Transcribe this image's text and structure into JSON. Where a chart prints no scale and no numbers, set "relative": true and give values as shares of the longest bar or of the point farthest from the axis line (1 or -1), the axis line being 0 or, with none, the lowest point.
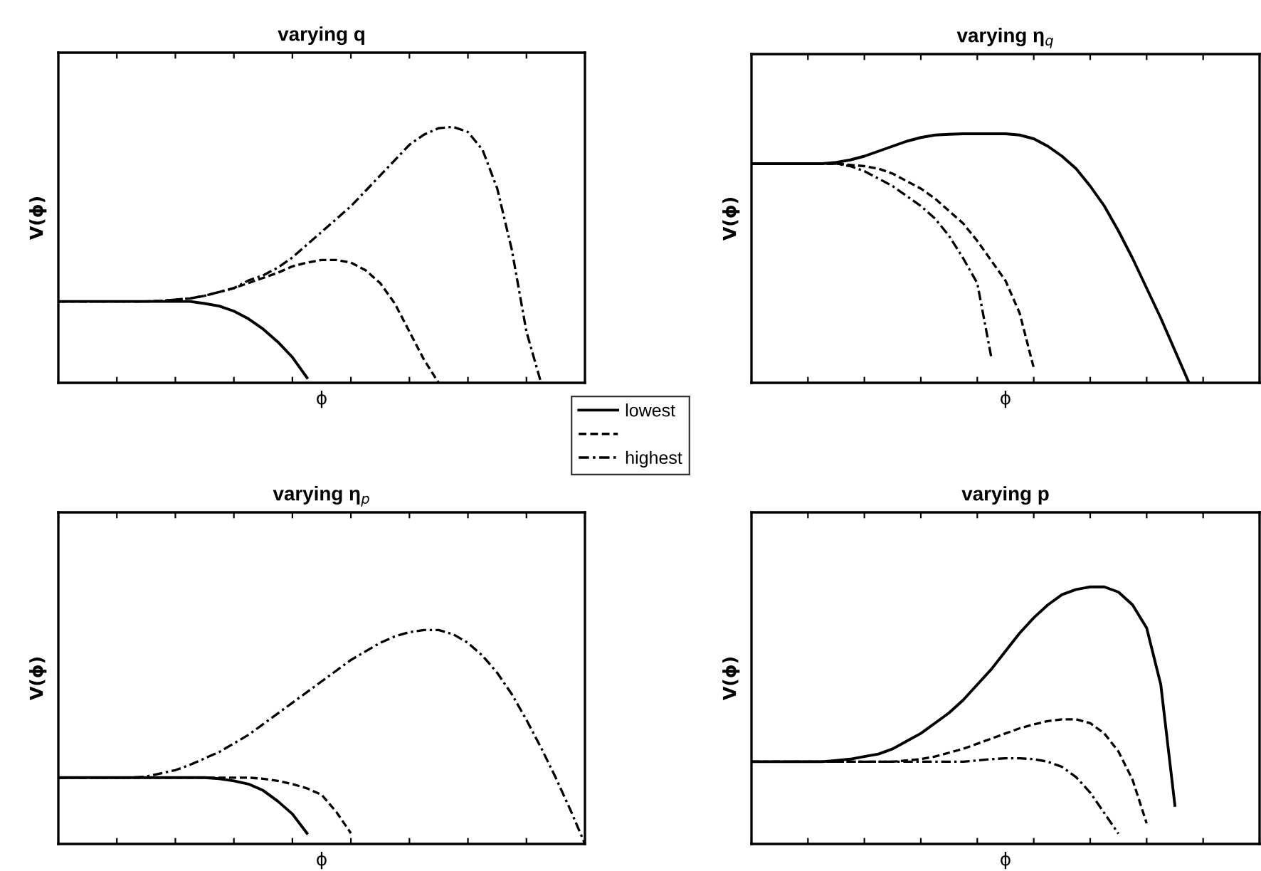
{
  "chart_data": [
    {
      "type": "line",
      "title": "varying q",
      "xlabel": "ϕ",
      "ylabel": "V(ϕ)",
      "relative": true,
      "tick_labels": false,
      "legend": "bottom right",
      "categories": [
        null,
        null,
        null,
        null,
        null,
        null,
        null,
        null,
        null,
        null,
        null,
        null,
        null,
        null,
        null,
        null,
        null,
        null,
        null,
        null,
        null,
        null,
        null,
        null,
        null,
        null,
        null,
        null,
        null,
        null,
        null,
        null,
        null,
        null,
        null,
        null,
        null
      ],
      "series": [
        {
          "name": "lowest",
          "color": "#000000",
          "line_style": "solid",
          "values": [
            0.318,
            0.318,
            0.318,
            0.318,
            0.318,
            0.318,
            0.318,
            0.318,
            0.318,
            0.318,
            0.31,
            0.3,
            0.28,
            0.25,
            0.21,
            0.16,
            0.1,
            0.02,
            null,
            null,
            null,
            null,
            null,
            null,
            null,
            null,
            null,
            null,
            null,
            null,
            null,
            null,
            null,
            null,
            null,
            null,
            null
          ]
        },
        {
          "color": "#000000",
          "line_style": "dashed",
          "values": [
            0.318,
            0.318,
            0.318,
            0.318,
            0.318,
            0.318,
            0.318,
            0.32,
            0.325,
            0.33,
            0.34,
            0.355,
            0.37,
            0.39,
            0.41,
            0.43,
            0.455,
            0.47,
            0.48,
            0.48,
            0.47,
            0.44,
            0.39,
            0.31,
            0.2,
            0.09,
            0.0,
            null,
            null,
            null,
            null,
            null,
            null,
            null,
            null,
            null,
            null
          ]
        },
        {
          "name": "highest",
          "color": "#000000",
          "line_style": "dashdot",
          "values": [
            0.318,
            0.318,
            0.318,
            0.318,
            0.318,
            0.318,
            0.318,
            0.32,
            0.325,
            0.33,
            0.34,
            0.355,
            0.37,
            0.4,
            0.42,
            0.45,
            0.49,
            0.54,
            0.59,
            0.64,
            0.69,
            0.75,
            0.81,
            0.87,
            0.93,
            0.97,
            0.995,
            1.0,
            0.98,
            0.91,
            0.76,
            0.52,
            0.2,
            0.0,
            null,
            null,
            null
          ]
        }
      ]
    },
    {
      "type": "line",
      "title": "varying η$_{q}$",
      "xlabel": "ϕ",
      "ylabel": "V(ϕ)",
      "relative": true,
      "tick_labels": false,
      "categories": [
        null,
        null,
        null,
        null,
        null,
        null,
        null,
        null,
        null,
        null,
        null,
        null,
        null,
        null,
        null,
        null,
        null,
        null,
        null,
        null,
        null,
        null,
        null,
        null,
        null,
        null,
        null,
        null,
        null,
        null,
        null,
        null,
        null,
        null,
        null,
        null,
        null
      ],
      "series": [
        {
          "color": "#000000",
          "line_style": "solid",
          "values": [
            0.88,
            0.88,
            0.88,
            0.88,
            0.88,
            0.88,
            0.885,
            0.895,
            0.91,
            0.93,
            0.95,
            0.97,
            0.985,
            0.995,
            0.998,
            1.0,
            1.0,
            1.0,
            1.0,
            0.995,
            0.98,
            0.95,
            0.91,
            0.86,
            0.79,
            0.71,
            0.61,
            0.5,
            0.38,
            0.26,
            0.13,
            0.0,
            null,
            null,
            null,
            null,
            null
          ]
        },
        {
          "color": "#000000",
          "line_style": "dashed",
          "values": [
            0.88,
            0.88,
            0.88,
            0.88,
            0.88,
            0.88,
            0.88,
            0.875,
            0.87,
            0.86,
            0.84,
            0.81,
            0.78,
            0.74,
            0.69,
            0.64,
            0.57,
            0.49,
            0.41,
            0.28,
            0.06,
            null,
            null,
            null,
            null,
            null,
            null,
            null,
            null,
            null,
            null,
            null,
            null,
            null,
            null,
            null,
            null
          ]
        },
        {
          "color": "#000000",
          "line_style": "dashdot",
          "values": [
            0.88,
            0.88,
            0.88,
            0.88,
            0.88,
            0.88,
            0.88,
            0.87,
            0.85,
            0.82,
            0.79,
            0.75,
            0.71,
            0.66,
            0.59,
            0.5,
            0.4,
            0.1,
            null,
            null,
            null,
            null,
            null,
            null,
            null,
            null,
            null,
            null,
            null,
            null,
            null,
            null,
            null,
            null,
            null,
            null,
            null
          ]
        }
      ]
    },
    {
      "type": "line",
      "title": "varying η$_{p}$",
      "xlabel": "ϕ",
      "ylabel": "V(ϕ)",
      "relative": true,
      "tick_labels": false,
      "categories": [
        null,
        null,
        null,
        null,
        null,
        null,
        null,
        null,
        null,
        null,
        null,
        null,
        null,
        null,
        null,
        null,
        null,
        null,
        null,
        null,
        null,
        null,
        null,
        null,
        null,
        null,
        null,
        null,
        null,
        null,
        null,
        null,
        null,
        null,
        null,
        null,
        null
      ],
      "series": [
        {
          "color": "#000000",
          "line_style": "solid",
          "values": [
            0.31,
            0.31,
            0.31,
            0.31,
            0.31,
            0.31,
            0.31,
            0.31,
            0.31,
            0.31,
            0.31,
            0.305,
            0.295,
            0.28,
            0.25,
            0.2,
            0.14,
            0.05,
            null,
            null,
            null,
            null,
            null,
            null,
            null,
            null,
            null,
            null,
            null,
            null,
            null,
            null,
            null,
            null,
            null,
            null,
            null
          ]
        },
        {
          "color": "#000000",
          "line_style": "dashed",
          "values": [
            0.31,
            0.31,
            0.31,
            0.31,
            0.31,
            0.31,
            0.31,
            0.31,
            0.31,
            0.31,
            0.31,
            0.31,
            0.31,
            0.31,
            0.305,
            0.295,
            0.28,
            0.26,
            0.23,
            0.15,
            0.05,
            null,
            null,
            null,
            null,
            null,
            null,
            null,
            null,
            null,
            null,
            null,
            null,
            null,
            null,
            null,
            null
          ]
        },
        {
          "color": "#000000",
          "line_style": "dashdot",
          "values": [
            0.31,
            0.31,
            0.31,
            0.31,
            0.31,
            0.31,
            0.315,
            0.33,
            0.345,
            0.37,
            0.4,
            0.43,
            0.47,
            0.51,
            0.56,
            0.61,
            0.66,
            0.71,
            0.76,
            0.81,
            0.86,
            0.9,
            0.94,
            0.97,
            0.99,
            1.0,
            1.0,
            0.98,
            0.94,
            0.88,
            0.8,
            0.7,
            0.58,
            0.45,
            0.31,
            0.16,
            0.0
          ]
        }
      ]
    },
    {
      "type": "line",
      "title": "varying p",
      "xlabel": "ϕ",
      "ylabel": "V(ϕ)",
      "relative": true,
      "tick_labels": false,
      "categories": [
        null,
        null,
        null,
        null,
        null,
        null,
        null,
        null,
        null,
        null,
        null,
        null,
        null,
        null,
        null,
        null,
        null,
        null,
        null,
        null,
        null,
        null,
        null,
        null,
        null,
        null,
        null,
        null,
        null,
        null,
        null,
        null,
        null,
        null,
        null,
        null,
        null
      ],
      "series": [
        {
          "color": "#000000",
          "line_style": "solid",
          "values": [
            0.32,
            0.32,
            0.32,
            0.32,
            0.32,
            0.32,
            0.325,
            0.33,
            0.34,
            0.35,
            0.37,
            0.4,
            0.43,
            0.47,
            0.51,
            0.56,
            0.62,
            0.68,
            0.75,
            0.82,
            0.88,
            0.93,
            0.97,
            0.99,
            1.0,
            1.0,
            0.98,
            0.93,
            0.84,
            0.62,
            0.15,
            null,
            null,
            null,
            null,
            null,
            null
          ]
        },
        {
          "color": "#000000",
          "line_style": "dashed",
          "values": [
            0.32,
            0.32,
            0.32,
            0.32,
            0.32,
            0.32,
            0.32,
            0.32,
            0.32,
            0.32,
            0.32,
            0.325,
            0.33,
            0.34,
            0.355,
            0.37,
            0.39,
            0.41,
            0.43,
            0.45,
            0.465,
            0.478,
            0.485,
            0.485,
            0.47,
            0.43,
            0.36,
            0.25,
            0.08,
            null,
            null,
            null,
            null,
            null,
            null,
            null,
            null
          ]
        },
        {
          "color": "#000000",
          "line_style": "dashdot",
          "values": [
            0.32,
            0.32,
            0.32,
            0.32,
            0.32,
            0.32,
            0.32,
            0.32,
            0.32,
            0.32,
            0.32,
            0.32,
            0.32,
            0.32,
            0.32,
            0.32,
            0.325,
            0.33,
            0.333,
            0.333,
            0.33,
            0.32,
            0.3,
            0.26,
            0.2,
            0.12,
            0.04,
            null,
            null,
            null,
            null,
            null,
            null,
            null,
            null,
            null,
            null
          ]
        }
      ]
    }
  ]
}
